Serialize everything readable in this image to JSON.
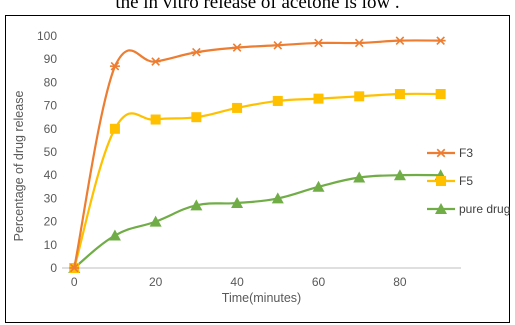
{
  "header_fragment": "the in vitro release of acetone is low         .",
  "chart_data": {
    "type": "line",
    "title": "",
    "xlabel": "Time(minutes)",
    "ylabel": "Percentage of drug release",
    "x": [
      0,
      10,
      20,
      30,
      40,
      50,
      60,
      70,
      80,
      90
    ],
    "xlim": [
      -3,
      95
    ],
    "ylim": [
      0,
      100
    ],
    "xticks": [
      0,
      20,
      40,
      60,
      80
    ],
    "yticks": [
      0,
      10,
      20,
      30,
      40,
      50,
      60,
      70,
      80,
      90,
      100
    ],
    "grid": false,
    "legend_position": "right",
    "series": [
      {
        "name": "F3",
        "values": [
          0,
          87,
          89,
          93,
          95,
          96,
          97,
          97,
          98,
          98
        ],
        "color": "#ED7D31",
        "marker": "star"
      },
      {
        "name": "F5",
        "values": [
          0,
          60,
          64,
          65,
          69,
          72,
          73,
          74,
          75,
          75
        ],
        "color": "#FFC000",
        "marker": "square"
      },
      {
        "name": "pure drug",
        "values": [
          0,
          14,
          20,
          27,
          28,
          30,
          35,
          39,
          40,
          40
        ],
        "color": "#70AD47",
        "marker": "triangle"
      }
    ]
  }
}
